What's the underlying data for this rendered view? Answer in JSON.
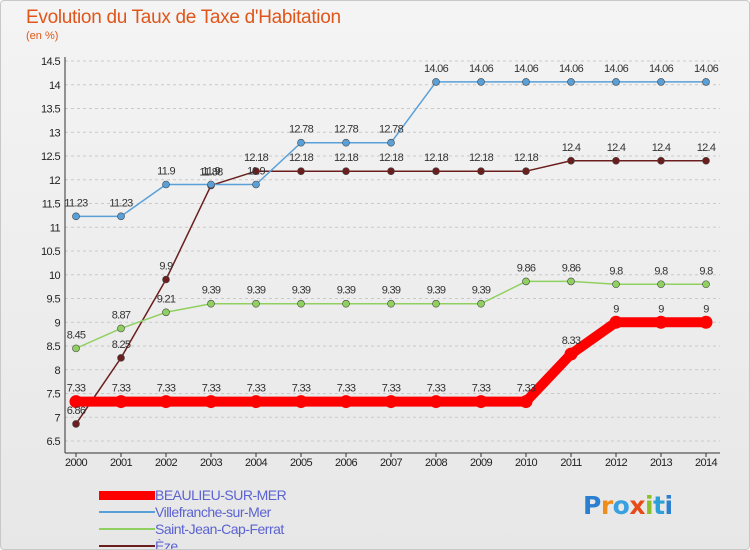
{
  "title": "Evolution du Taux de Taxe d'Habitation",
  "subtitle": "(en %)",
  "logo": "Proxiti",
  "chart_data": {
    "type": "line",
    "title": "Evolution du Taux de Taxe d'Habitation",
    "ylabel": "(en %)",
    "xlabel": "",
    "x": [
      "2000",
      "2001",
      "2002",
      "2003",
      "2004",
      "2005",
      "2006",
      "2007",
      "2008",
      "2009",
      "2010",
      "2011",
      "2012",
      "2013",
      "2014"
    ],
    "ylim": [
      6.5,
      14.5
    ],
    "yticks": [
      "6.5",
      "7",
      "7.5",
      "8",
      "8.5",
      "9",
      "9.5",
      "10",
      "10.5",
      "11",
      "11.5",
      "12",
      "12.5",
      "13",
      "13.5",
      "14",
      "14.5"
    ],
    "grid": "horizontal dashed",
    "legend_position": "bottom-left",
    "series": [
      {
        "name": "BEAULIEU-SUR-MER",
        "color": "#ff0000",
        "values": [
          7.33,
          7.33,
          7.33,
          7.33,
          7.33,
          7.33,
          7.33,
          7.33,
          7.33,
          7.33,
          7.33,
          8.33,
          9,
          9,
          9
        ],
        "labels": [
          "7.33",
          "7.33",
          "7.33",
          "7.33",
          "7.33",
          "7.33",
          "7.33",
          "7.33",
          "7.33",
          "7.33",
          "7.33",
          "8.33",
          "9",
          "9",
          "9"
        ]
      },
      {
        "name": "Villefranche-sur-Mer",
        "color": "#5aa0d8",
        "values": [
          11.23,
          11.23,
          11.9,
          11.9,
          11.9,
          12.78,
          12.78,
          12.78,
          14.06,
          14.06,
          14.06,
          14.06,
          14.06,
          14.06,
          14.06
        ],
        "labels": [
          "11.23",
          "11.23",
          "11.9",
          "11.9",
          "11.9",
          "12.78",
          "12.78",
          "12.78",
          "14.06",
          "14.06",
          "14.06",
          "14.06",
          "14.06",
          "14.06",
          "14.06"
        ]
      },
      {
        "name": "Saint-Jean-Cap-Ferrat",
        "color": "#90d060",
        "values": [
          8.45,
          8.87,
          9.21,
          9.39,
          9.39,
          9.39,
          9.39,
          9.39,
          9.39,
          9.39,
          9.86,
          9.86,
          9.8,
          9.8,
          9.8
        ],
        "labels": [
          "8.45",
          "8.87",
          "9.21",
          "9.39",
          "9.39",
          "9.39",
          "9.39",
          "9.39",
          "9.39",
          "9.39",
          "9.86",
          "9.86",
          "9.8",
          "9.8",
          "9.8"
        ]
      },
      {
        "name": "Èze",
        "color": "#6b1e1e",
        "values": [
          6.86,
          8.25,
          9.9,
          11.88,
          12.18,
          12.18,
          12.18,
          12.18,
          12.18,
          12.18,
          12.18,
          12.4,
          12.4,
          12.4,
          12.4
        ],
        "labels": [
          "6.86",
          "8.25",
          "9.9",
          "11.88",
          "12.18",
          "12.18",
          "12.18",
          "12.18",
          "12.18",
          "12.18",
          "12.18",
          "12.4",
          "12.4",
          "12.4",
          "12.4"
        ]
      }
    ]
  }
}
